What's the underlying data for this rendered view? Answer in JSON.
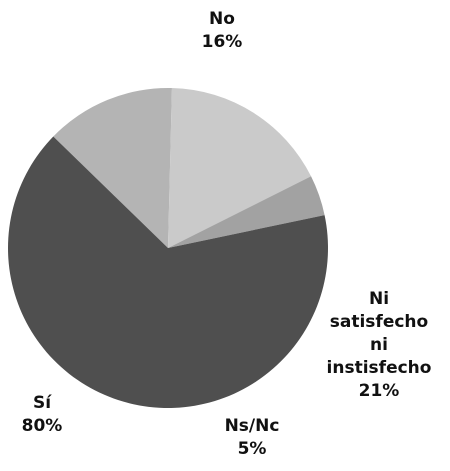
{
  "chart_data": {
    "type": "pie",
    "categories": [
      "No",
      "Ni satisfecho ni instisfecho",
      "Ns/Nc",
      "Sí"
    ],
    "values": [
      16,
      21,
      5,
      80
    ],
    "value_labels": [
      "16%",
      "21%",
      "5%",
      "80%"
    ],
    "colors": [
      "#b4b4b4",
      "#cacaca",
      "#a2a2a2",
      "#4f4f4f"
    ]
  }
}
